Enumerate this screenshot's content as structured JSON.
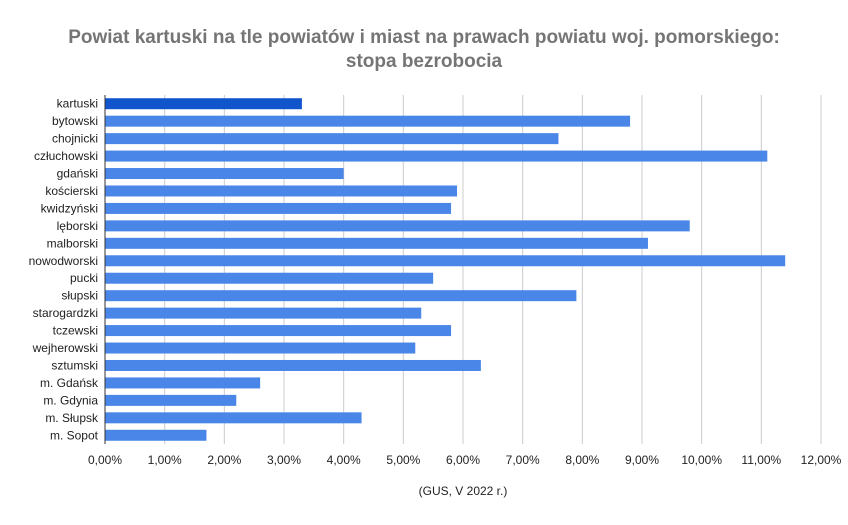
{
  "chart_data": {
    "type": "bar",
    "orientation": "horizontal",
    "title_line1": "Powiat kartuski na tle powiatów i miast na prawach powiatu woj. pomorskiego:",
    "title_line2": "stopa bezrobocia",
    "xlabel": "(GUS, V 2022 r.)",
    "ylabel": "",
    "xlim": [
      0,
      12
    ],
    "x_ticks": [
      0,
      1,
      2,
      3,
      4,
      5,
      6,
      7,
      8,
      9,
      10,
      11,
      12
    ],
    "x_tick_labels": [
      "0,00%",
      "1,00%",
      "2,00%",
      "3,00%",
      "4,00%",
      "5,00%",
      "6,00%",
      "7,00%",
      "8,00%",
      "9,00%",
      "10,00%",
      "11,00%",
      "12,00%"
    ],
    "grid": true,
    "categories": [
      "kartuski",
      "bytowski",
      "chojnicki",
      "człuchowski",
      "gdański",
      "kościerski",
      "kwidzyński",
      "lęborski",
      "malborski",
      "nowodworski",
      "pucki",
      "słupski",
      "starogardzki",
      "tczewski",
      "wejherowski",
      "sztumski",
      "m. Gdańsk",
      "m. Gdynia",
      "m. Słupsk",
      "m. Sopot"
    ],
    "values": [
      3.3,
      8.8,
      7.6,
      11.1,
      4.0,
      5.9,
      5.8,
      9.8,
      9.1,
      11.4,
      5.5,
      7.9,
      5.3,
      5.8,
      5.2,
      6.3,
      2.6,
      2.2,
      4.3,
      1.7
    ],
    "highlight_index": 0,
    "colors": {
      "bar": "#4a86e8",
      "highlight": "#1155cc",
      "grid": "#cccccc",
      "axis": "#333333"
    }
  }
}
